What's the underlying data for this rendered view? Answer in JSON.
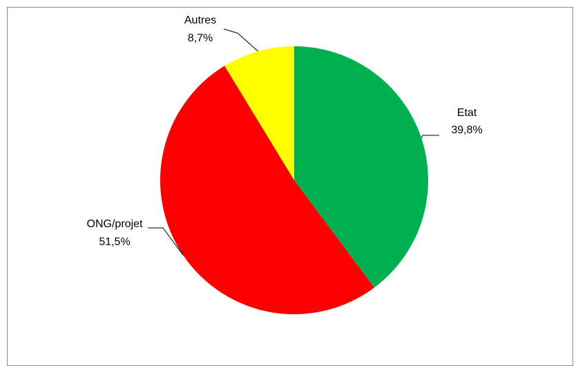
{
  "chart_data": {
    "type": "pie",
    "title": "",
    "slices": [
      {
        "label": "Etat",
        "value": 39.8,
        "value_text": "39,8%",
        "color": "#00B050"
      },
      {
        "label": "ONG/projet",
        "value": 51.5,
        "value_text": "51,5%",
        "color": "#FF0000"
      },
      {
        "label": "Autres",
        "value": 8.7,
        "value_text": "8,7%",
        "color": "#FFFF00"
      }
    ],
    "start_angle_deg": 0,
    "direction": "clockwise",
    "legend": "none",
    "data_labels": "outside-with-leader-lines"
  }
}
